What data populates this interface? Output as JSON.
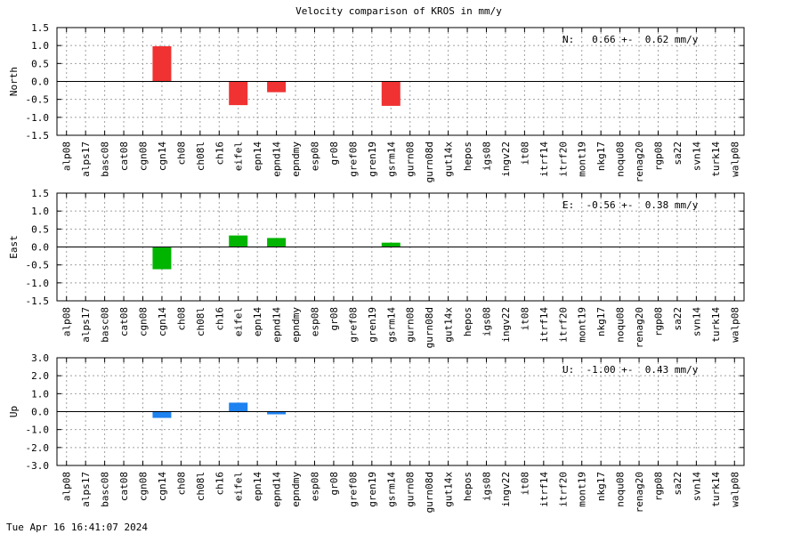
{
  "title": "Velocity comparison of KROS in mm/y",
  "footer": "Tue Apr 16 16:41:07 2024",
  "chart_data": {
    "type": "bar",
    "categories": [
      "alp08",
      "alps17",
      "basc08",
      "cat08",
      "cgn08",
      "cgn14",
      "ch08",
      "ch08l",
      "ch16",
      "eifel",
      "epn14",
      "epnd14",
      "epndmy",
      "esp08",
      "gr08",
      "gref08",
      "gren19",
      "gsrm14",
      "gurn08",
      "gurn08d",
      "gut14x",
      "hepos",
      "igs08",
      "ingv22",
      "it08",
      "itrf14",
      "itrf20",
      "mont19",
      "nkg17",
      "noqu08",
      "renag20",
      "rgp08",
      "sa22",
      "svn14",
      "turk14",
      "walp08"
    ],
    "grid": true,
    "panels": [
      {
        "component": "North",
        "ylabel": "North",
        "ylim": [
          -1.5,
          1.5
        ],
        "yticks": [
          "1.5",
          "1.0",
          "0.5",
          "0.0",
          "-0.5",
          "-1.0",
          "-1.5"
        ],
        "annotation": "N:   0.66 +-  0.62 mm/y",
        "color": "#f03232",
        "values": {
          "cgn14": 0.98,
          "eifel": -0.66,
          "epnd14": -0.3,
          "gsrm14": -0.68
        }
      },
      {
        "component": "East",
        "ylabel": "East",
        "ylim": [
          -1.5,
          1.5
        ],
        "yticks": [
          "1.5",
          "1.0",
          "0.5",
          "0.0",
          "-0.5",
          "-1.0",
          "-1.5"
        ],
        "annotation": "E:  -0.56 +-  0.38 mm/y",
        "color": "#00b400",
        "values": {
          "cgn14": -0.62,
          "eifel": 0.32,
          "epnd14": 0.25,
          "gsrm14": 0.12
        }
      },
      {
        "component": "Up",
        "ylabel": "Up",
        "ylim": [
          -3.0,
          3.0
        ],
        "yticks": [
          "3.0",
          "2.0",
          "1.0",
          "0.0",
          "-1.0",
          "-2.0",
          "-3.0"
        ],
        "annotation": "U:  -1.00 +-  0.43 mm/y",
        "color": "#1e82f0",
        "values": {
          "cgn14": -0.35,
          "eifel": 0.5,
          "epnd14": -0.15
        }
      }
    ]
  }
}
